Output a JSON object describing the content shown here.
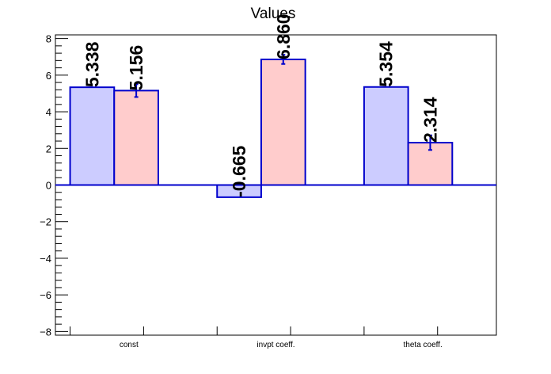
{
  "chart_data": {
    "type": "bar",
    "title": "Values",
    "categories": [
      "const",
      "invpt coeff.",
      "theta coeff."
    ],
    "series": [
      {
        "values": [
          5.338,
          -0.665,
          5.354
        ],
        "labels": [
          "5.338",
          "-0.665",
          "5.354"
        ],
        "errors": [
          0,
          0,
          0
        ],
        "fill": "#ccccff",
        "stroke": "#0000cc"
      },
      {
        "values": [
          5.156,
          6.86,
          2.314
        ],
        "labels": [
          "5.156",
          "6.860",
          "2.314"
        ],
        "errors": [
          0.35,
          0.25,
          0.4
        ],
        "fill": "#ffcccc",
        "stroke": "#0000cc"
      }
    ],
    "ylim": [
      -8.2,
      8.2
    ],
    "yticks": [
      -8,
      -6,
      -4,
      -2,
      0,
      2,
      4,
      6,
      8
    ],
    "ytick_labels": [
      "−8",
      "−6",
      "−4",
      "−2",
      "0",
      "2",
      "4",
      "6",
      "8"
    ],
    "xlabel": "",
    "ylabel": "",
    "grid": false,
    "legend": "none",
    "colors": {
      "axis": "#000000",
      "zero_line": "#0000cc"
    }
  }
}
